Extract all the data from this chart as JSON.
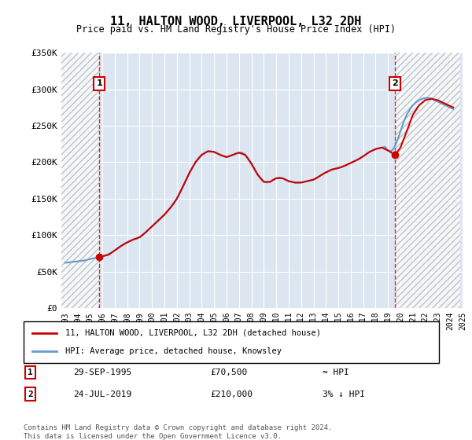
{
  "title": "11, HALTON WOOD, LIVERPOOL, L32 2DH",
  "subtitle": "Price paid vs. HM Land Registry's House Price Index (HPI)",
  "legend_line1": "11, HALTON WOOD, LIVERPOOL, L32 2DH (detached house)",
  "legend_line2": "HPI: Average price, detached house, Knowsley",
  "annotation1_num": "1",
  "annotation1_date": "29-SEP-1995",
  "annotation1_price": "£70,500",
  "annotation1_hpi": "≈ HPI",
  "annotation2_num": "2",
  "annotation2_date": "24-JUL-2019",
  "annotation2_price": "£210,000",
  "annotation2_hpi": "3% ↓ HPI",
  "footer": "Contains HM Land Registry data © Crown copyright and database right 2024.\nThis data is licensed under the Open Government Licence v3.0.",
  "ylim": [
    0,
    350000
  ],
  "yticks": [
    0,
    50000,
    100000,
    150000,
    200000,
    250000,
    300000,
    350000
  ],
  "ytick_labels": [
    "£0",
    "£50K",
    "£100K",
    "£150K",
    "£200K",
    "£250K",
    "£300K",
    "£350K"
  ],
  "sale1_x": 1995.75,
  "sale1_y": 70500,
  "sale2_x": 2019.56,
  "sale2_y": 210000,
  "hatch_color": "#cccccc",
  "plot_bg_color": "#dce6f1",
  "grid_color": "#ffffff",
  "red_color": "#cc0000",
  "blue_color": "#6699cc",
  "line_color_red": "#cc0000",
  "line_color_blue": "#88aacc",
  "vline_color": "#cc0000",
  "box_color": "#cc0000",
  "hpi_data_x": [
    1993.0,
    1993.25,
    1993.5,
    1993.75,
    1994.0,
    1994.25,
    1994.5,
    1994.75,
    1995.0,
    1995.25,
    1995.5,
    1995.75,
    1996.0,
    1996.25,
    1996.5,
    1996.75,
    1997.0,
    1997.25,
    1997.5,
    1997.75,
    1998.0,
    1998.25,
    1998.5,
    1998.75,
    1999.0,
    1999.25,
    1999.5,
    1999.75,
    2000.0,
    2000.25,
    2000.5,
    2000.75,
    2001.0,
    2001.25,
    2001.5,
    2001.75,
    2002.0,
    2002.25,
    2002.5,
    2002.75,
    2003.0,
    2003.25,
    2003.5,
    2003.75,
    2004.0,
    2004.25,
    2004.5,
    2004.75,
    2005.0,
    2005.25,
    2005.5,
    2005.75,
    2006.0,
    2006.25,
    2006.5,
    2006.75,
    2007.0,
    2007.25,
    2007.5,
    2007.75,
    2008.0,
    2008.25,
    2008.5,
    2008.75,
    2009.0,
    2009.25,
    2009.5,
    2009.75,
    2010.0,
    2010.25,
    2010.5,
    2010.75,
    2011.0,
    2011.25,
    2011.5,
    2011.75,
    2012.0,
    2012.25,
    2012.5,
    2012.75,
    2013.0,
    2013.25,
    2013.5,
    2013.75,
    2014.0,
    2014.25,
    2014.5,
    2014.75,
    2015.0,
    2015.25,
    2015.5,
    2015.75,
    2016.0,
    2016.25,
    2016.5,
    2016.75,
    2017.0,
    2017.25,
    2017.5,
    2017.75,
    2018.0,
    2018.25,
    2018.5,
    2018.75,
    2019.0,
    2019.25,
    2019.5,
    2019.75,
    2020.0,
    2020.25,
    2020.5,
    2020.75,
    2021.0,
    2021.25,
    2021.5,
    2021.75,
    2022.0,
    2022.25,
    2022.5,
    2022.75,
    2023.0,
    2023.25,
    2023.5,
    2023.75,
    2024.0,
    2024.25
  ],
  "hpi_data_y": [
    62000,
    62500,
    63000,
    63500,
    64000,
    64500,
    65000,
    66000,
    67000,
    68000,
    69000,
    70000,
    71000,
    72000,
    74000,
    76000,
    79000,
    82000,
    85000,
    88000,
    90000,
    92000,
    94000,
    95000,
    97000,
    100000,
    104000,
    108000,
    112000,
    116000,
    120000,
    124000,
    128000,
    133000,
    138000,
    143000,
    150000,
    158000,
    167000,
    176000,
    185000,
    193000,
    200000,
    206000,
    210000,
    213000,
    215000,
    215000,
    214000,
    212000,
    210000,
    208000,
    207000,
    208000,
    210000,
    212000,
    213000,
    213000,
    210000,
    205000,
    198000,
    190000,
    183000,
    177000,
    173000,
    172000,
    173000,
    176000,
    178000,
    179000,
    178000,
    176000,
    174000,
    173000,
    172000,
    172000,
    172000,
    173000,
    174000,
    175000,
    176000,
    178000,
    181000,
    184000,
    186000,
    188000,
    190000,
    191000,
    192000,
    193000,
    195000,
    197000,
    199000,
    201000,
    203000,
    205000,
    208000,
    211000,
    214000,
    216000,
    218000,
    219000,
    220000,
    221000,
    216000,
    215000,
    220000,
    230000,
    242000,
    255000,
    265000,
    272000,
    278000,
    282000,
    285000,
    287000,
    288000,
    288000,
    287000,
    285000,
    283000,
    281000,
    279000,
    277000,
    275000,
    273000
  ],
  "price_data_x": [
    1995.75,
    1996.0,
    1996.5,
    1997.0,
    1997.5,
    1998.0,
    1998.5,
    1999.0,
    1999.5,
    2000.0,
    2000.5,
    2001.0,
    2001.5,
    2002.0,
    2002.5,
    2003.0,
    2003.5,
    2004.0,
    2004.5,
    2005.0,
    2005.5,
    2006.0,
    2006.5,
    2007.0,
    2007.5,
    2008.0,
    2008.5,
    2009.0,
    2009.5,
    2010.0,
    2010.5,
    2011.0,
    2011.5,
    2012.0,
    2012.5,
    2013.0,
    2013.5,
    2014.0,
    2014.5,
    2015.0,
    2015.5,
    2016.0,
    2016.5,
    2017.0,
    2017.5,
    2018.0,
    2018.5,
    2019.0,
    2019.56,
    2020.0,
    2020.5,
    2021.0,
    2021.5,
    2022.0,
    2022.5,
    2023.0,
    2023.5,
    2024.0,
    2024.25
  ],
  "price_data_y": [
    70500,
    71000,
    73000,
    79000,
    85000,
    90000,
    94000,
    97000,
    104000,
    112000,
    120000,
    128000,
    138000,
    150000,
    167000,
    185000,
    200000,
    210000,
    215000,
    214000,
    210000,
    207000,
    210000,
    213000,
    210000,
    198000,
    183000,
    173000,
    173000,
    178000,
    178000,
    174000,
    172000,
    172000,
    174000,
    176000,
    181000,
    186000,
    190000,
    192000,
    195000,
    199000,
    203000,
    208000,
    214000,
    218000,
    220000,
    216000,
    210000,
    220000,
    242000,
    265000,
    278000,
    285000,
    287000,
    285000,
    281000,
    277000,
    275000
  ],
  "xlim_start": 1992.7,
  "xlim_end": 2024.8,
  "hatch_left_end": 1995.75,
  "hatch_right_start": 2019.56,
  "xtick_years": [
    1993,
    1994,
    1995,
    1996,
    1997,
    1998,
    1999,
    2000,
    2001,
    2002,
    2003,
    2004,
    2005,
    2006,
    2007,
    2008,
    2009,
    2010,
    2011,
    2012,
    2013,
    2014,
    2015,
    2016,
    2017,
    2018,
    2019,
    2020,
    2021,
    2022,
    2023,
    2024,
    2025
  ]
}
